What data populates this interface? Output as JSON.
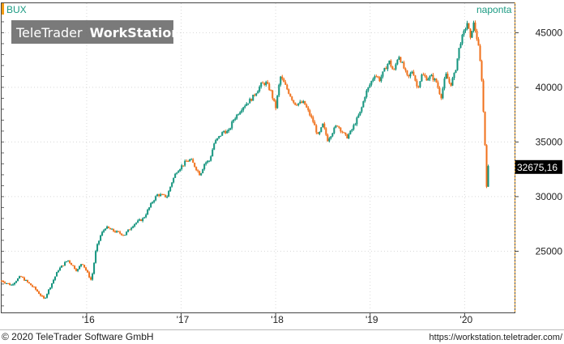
{
  "header": {
    "symbol": "BUX",
    "interval_label": "naponta",
    "watermark_brand": "TeleTrader",
    "watermark_product": "WorkStation"
  },
  "footer": {
    "copyright": "© 2020 TeleTrader Software GmbH",
    "url": "https://workstation.teletrader.com/"
  },
  "colors": {
    "up": "#12937d",
    "down": "#f0701a",
    "accent": "#f39c12",
    "price_tag_bg": "#000000",
    "grid": "#d8d8d8"
  },
  "chart_data": {
    "type": "candlestick",
    "title": "BUX",
    "interval": "naponta",
    "y_axis": {
      "side": "right",
      "ticks": [
        25000,
        30000,
        35000,
        40000,
        45000
      ],
      "tick_labels": [
        "25000",
        "30000",
        "35000",
        "40000",
        "45000"
      ],
      "ylim": [
        19400,
        47700
      ]
    },
    "x_axis": {
      "ticks": [
        2016.0,
        2017.0,
        2018.0,
        2019.0,
        2020.0
      ],
      "tick_labels": [
        "'16",
        "'17",
        "'18",
        "'19",
        "'20"
      ],
      "xlim": [
        2015.1,
        2020.52
      ]
    },
    "last_value": 32675.16,
    "last_value_label": "32675,16",
    "grid": true,
    "series": [
      {
        "name": "BUX",
        "x": [
          2015.1,
          2015.2,
          2015.3,
          2015.45,
          2015.55,
          2015.6,
          2015.7,
          2015.8,
          2015.9,
          2015.95,
          2016.05,
          2016.1,
          2016.15,
          2016.2,
          2016.3,
          2016.4,
          2016.5,
          2016.6,
          2016.7,
          2016.75,
          2016.85,
          2016.9,
          2016.95,
          2017.05,
          2017.1,
          2017.2,
          2017.25,
          2017.3,
          2017.35,
          2017.45,
          2017.5,
          2017.55,
          2017.65,
          2017.75,
          2017.85,
          2017.9,
          2017.95,
          2018.0,
          2018.05,
          2018.1,
          2018.2,
          2018.3,
          2018.4,
          2018.45,
          2018.5,
          2018.55,
          2018.65,
          2018.75,
          2018.8,
          2018.9,
          2018.95,
          2019.05,
          2019.1,
          2019.2,
          2019.25,
          2019.3,
          2019.4,
          2019.45,
          2019.5,
          2019.55,
          2019.6,
          2019.65,
          2019.7,
          2019.75,
          2019.8,
          2019.85,
          2019.9,
          2019.95,
          2020.0,
          2020.03,
          2020.06,
          2020.09,
          2020.12,
          2020.15,
          2020.18,
          2020.2,
          2020.22,
          2020.24,
          2020.25
        ],
        "y": [
          22300,
          21900,
          22700,
          21600,
          20600,
          21500,
          23300,
          24200,
          23200,
          24000,
          22300,
          25200,
          26500,
          27200,
          26800,
          26500,
          27500,
          28000,
          29600,
          30200,
          30000,
          31300,
          32300,
          33200,
          33400,
          32000,
          33100,
          33300,
          34900,
          36000,
          35900,
          37000,
          38200,
          39000,
          40300,
          40400,
          39600,
          38100,
          41000,
          40200,
          38500,
          38600,
          36800,
          35500,
          36600,
          35200,
          36600,
          35400,
          36000,
          37800,
          39400,
          41200,
          40700,
          42400,
          41400,
          43000,
          40800,
          41600,
          39900,
          41200,
          40800,
          41000,
          40500,
          39100,
          41200,
          40200,
          41400,
          44000,
          45200,
          46000,
          44300,
          46000,
          45000,
          43500,
          41000,
          37500,
          34000,
          29400,
          32675
        ]
      }
    ]
  }
}
